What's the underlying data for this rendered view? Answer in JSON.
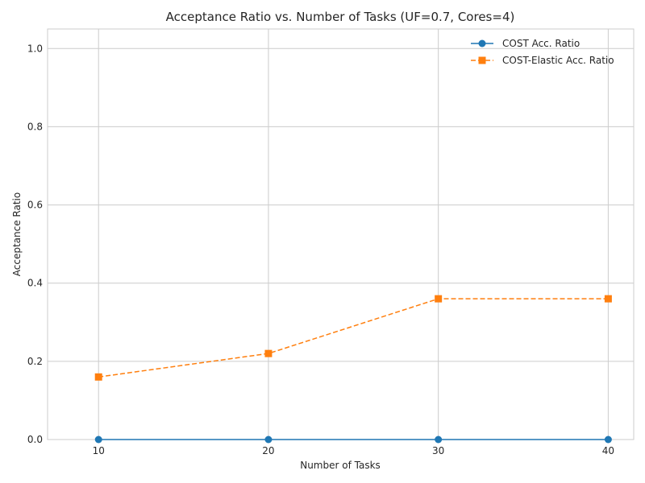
{
  "chart_data": {
    "type": "line",
    "title": "Acceptance Ratio vs. Number of Tasks (UF=0.7, Cores=4)",
    "xlabel": "Number of Tasks",
    "ylabel": "Acceptance Ratio",
    "x": [
      10,
      20,
      30,
      40
    ],
    "x_ticks": [
      "10",
      "20",
      "30",
      "40"
    ],
    "y_ticks": [
      "0.0",
      "0.2",
      "0.4",
      "0.6",
      "0.8",
      "1.0"
    ],
    "xlim": [
      7,
      41.5
    ],
    "ylim": [
      0,
      1.05
    ],
    "grid": true,
    "legend_position": "top-right",
    "series": [
      {
        "name": "COST Acc. Ratio",
        "values": [
          0,
          0,
          0,
          0
        ],
        "color": "#1f77b4",
        "marker": "circle",
        "line_style": "solid"
      },
      {
        "name": "COST-Elastic Acc. Ratio",
        "values": [
          0.16,
          0.22,
          0.36,
          0.36
        ],
        "color": "#ff7f0e",
        "marker": "square",
        "line_style": "dashed"
      }
    ]
  }
}
